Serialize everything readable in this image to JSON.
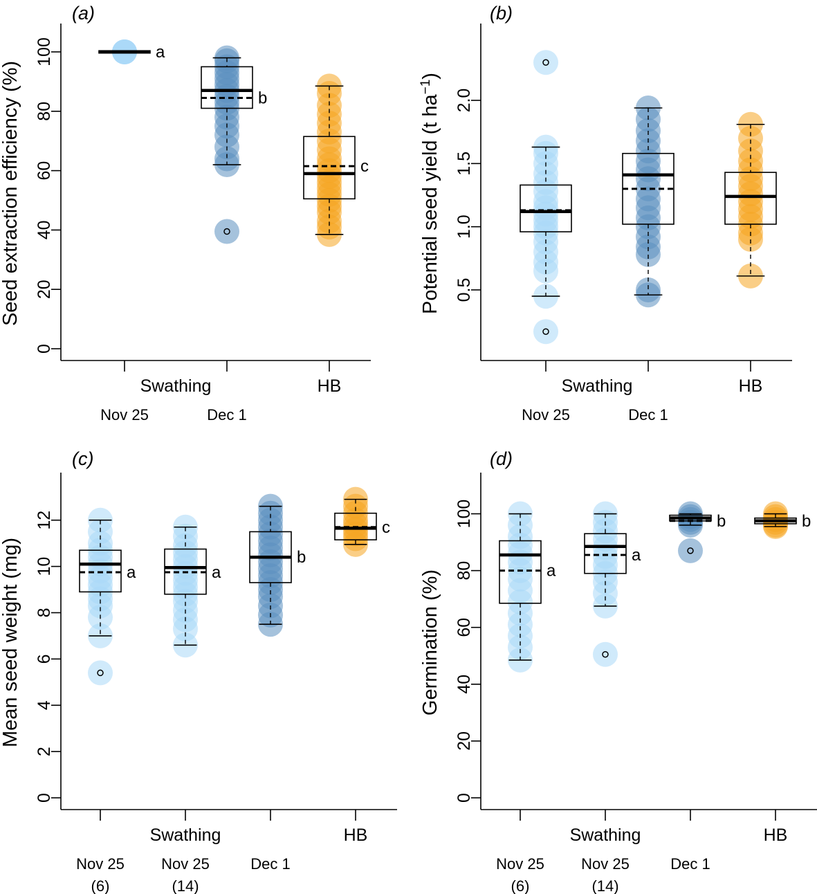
{
  "colors": {
    "light_blue": "#a9d8f8",
    "dark_blue": "#5b8fbf",
    "orange": "#f5a623",
    "axis": "#000000"
  },
  "chart_data": [
    {
      "id": "a",
      "type": "boxplot",
      "panel_label": "(a)",
      "ylabel": "Seed extraction efficiency (%)",
      "ylim": [
        0,
        100
      ],
      "yticks": [
        0,
        20,
        40,
        60,
        80,
        100
      ],
      "ytick_labels": [
        "0",
        "20",
        "40",
        "60",
        "80",
        "100"
      ],
      "group_labels": [
        "Swathing",
        "HB"
      ],
      "categories": [
        {
          "label": "Nov 25",
          "sublabel": "",
          "group": 0,
          "color": "light_blue",
          "letter": "a",
          "q1": 99.6,
          "median": 100,
          "q3": 100.4,
          "mean": null,
          "wlo": 100,
          "whi": 100,
          "outliers": [],
          "points": [
            100,
            100,
            100,
            100,
            100
          ]
        },
        {
          "label": "Dec 1",
          "sublabel": "",
          "group": 0,
          "color": "dark_blue",
          "letter": "b",
          "q1": 81,
          "median": 87,
          "q3": 95,
          "mean": 84.5,
          "wlo": 62,
          "whi": 98,
          "outliers": [
            39.5
          ],
          "points": [
            98,
            97,
            95,
            93,
            91,
            89,
            87,
            85,
            83,
            81,
            78,
            75,
            72,
            68,
            64,
            62,
            39.5
          ]
        },
        {
          "label": "",
          "sublabel": "",
          "group": 1,
          "color": "orange",
          "letter": "c",
          "q1": 50.5,
          "median": 59,
          "q3": 71.5,
          "mean": 61.5,
          "wlo": 38.5,
          "whi": 88.5,
          "outliers": [],
          "points": [
            88.5,
            86,
            82,
            79,
            76,
            73,
            70,
            67,
            64,
            62,
            60,
            58,
            56,
            54,
            52,
            50,
            48,
            46,
            43,
            41,
            38.5
          ]
        }
      ]
    },
    {
      "id": "b",
      "type": "boxplot",
      "panel_label": "(b)",
      "ylabel": "Potential seed yield (t ha",
      "ylabel_superscript": "−1",
      "ylabel_tail": ")",
      "ylim": [
        0.1,
        2.4
      ],
      "yticks": [
        0.5,
        1.0,
        1.5,
        2.0
      ],
      "ytick_labels": [
        "0.5",
        "1.0",
        "1.5",
        "2.0"
      ],
      "group_labels": [
        "Swathing",
        "HB"
      ],
      "categories": [
        {
          "label": "Nov 25",
          "sublabel": "",
          "group": 0,
          "color": "light_blue",
          "letter": "",
          "q1": 0.96,
          "median": 1.12,
          "q3": 1.33,
          "mean": 1.13,
          "wlo": 0.45,
          "whi": 1.63,
          "outliers": [
            2.3,
            0.17
          ],
          "points": [
            1.63,
            1.58,
            1.5,
            1.42,
            1.35,
            1.28,
            1.2,
            1.15,
            1.1,
            1.05,
            1.0,
            0.95,
            0.88,
            0.8,
            0.72,
            0.65,
            0.45,
            2.3,
            0.17
          ]
        },
        {
          "label": "Dec 1",
          "sublabel": "",
          "group": 0,
          "color": "dark_blue",
          "letter": "",
          "q1": 1.02,
          "median": 1.41,
          "q3": 1.58,
          "mean": 1.3,
          "wlo": 0.46,
          "whi": 1.94,
          "outliers": [],
          "points": [
            1.94,
            1.85,
            1.76,
            1.68,
            1.6,
            1.52,
            1.45,
            1.38,
            1.3,
            1.22,
            1.15,
            1.07,
            1.0,
            0.92,
            0.84,
            0.78,
            0.5,
            0.46
          ]
        },
        {
          "label": "",
          "sublabel": "",
          "group": 1,
          "color": "orange",
          "letter": "",
          "q1": 1.02,
          "median": 1.24,
          "q3": 1.43,
          "mean": null,
          "wlo": 0.61,
          "whi": 1.81,
          "outliers": [],
          "points": [
            1.81,
            1.7,
            1.6,
            1.52,
            1.45,
            1.38,
            1.32,
            1.26,
            1.2,
            1.14,
            1.08,
            1.02,
            0.95,
            0.9,
            0.61
          ]
        }
      ]
    },
    {
      "id": "c",
      "type": "boxplot",
      "panel_label": "(c)",
      "ylabel": "Mean seed weight (mg)",
      "ylim": [
        0,
        12.5
      ],
      "yticks": [
        0,
        2,
        4,
        6,
        8,
        10,
        12
      ],
      "ytick_labels": [
        "0",
        "2",
        "4",
        "6",
        "8",
        "10",
        "12"
      ],
      "group_labels": [
        "Swathing",
        "HB"
      ],
      "categories": [
        {
          "label": "Nov 25",
          "sublabel": "(6)",
          "group": 0,
          "color": "light_blue",
          "letter": "a",
          "q1": 8.9,
          "median": 10.1,
          "q3": 10.7,
          "mean": 9.75,
          "wlo": 7.0,
          "whi": 12.0,
          "outliers": [
            5.4
          ],
          "points": [
            12.0,
            11.5,
            11.0,
            10.7,
            10.4,
            10.1,
            9.8,
            9.5,
            9.2,
            8.9,
            8.6,
            8.3,
            7.8,
            7.0,
            5.4
          ]
        },
        {
          "label": "Nov 25",
          "sublabel": "(14)",
          "group": 0,
          "color": "light_blue",
          "letter": "a",
          "q1": 8.8,
          "median": 9.95,
          "q3": 10.75,
          "mean": 9.75,
          "wlo": 6.6,
          "whi": 11.7,
          "outliers": [],
          "points": [
            11.7,
            11.3,
            10.9,
            10.6,
            10.3,
            10.0,
            9.7,
            9.4,
            9.1,
            8.8,
            8.5,
            8.1,
            7.7,
            7.3,
            6.6
          ]
        },
        {
          "label": "Dec 1",
          "sublabel": "",
          "group": 0,
          "color": "dark_blue",
          "letter": "b",
          "q1": 9.3,
          "median": 10.4,
          "q3": 11.5,
          "mean": null,
          "wlo": 7.5,
          "whi": 12.6,
          "outliers": [],
          "points": [
            12.6,
            12.3,
            12.0,
            11.7,
            11.4,
            11.1,
            10.8,
            10.5,
            10.2,
            9.9,
            9.6,
            9.3,
            9.0,
            8.7,
            8.3,
            7.9,
            7.5
          ]
        },
        {
          "label": "",
          "sublabel": "",
          "group": 1,
          "color": "orange",
          "letter": "c",
          "q1": 11.15,
          "median": 11.65,
          "q3": 12.3,
          "mean": 11.7,
          "wlo": 10.95,
          "whi": 12.9,
          "outliers": [],
          "points": [
            12.9,
            12.6,
            12.3,
            12.0,
            11.8,
            11.6,
            11.4,
            11.2,
            10.95
          ]
        }
      ]
    },
    {
      "id": "d",
      "type": "boxplot",
      "panel_label": "(d)",
      "ylabel": "Germination (%)",
      "ylim": [
        0,
        105
      ],
      "yticks": [
        0,
        20,
        40,
        60,
        80,
        100
      ],
      "ytick_labels": [
        "0",
        "20",
        "40",
        "60",
        "80",
        "100"
      ],
      "group_labels": [
        "Swathing",
        "HB"
      ],
      "categories": [
        {
          "label": "Nov 25",
          "sublabel": "(6)",
          "group": 0,
          "color": "light_blue",
          "letter": "a",
          "q1": 68.5,
          "median": 85.5,
          "q3": 90.5,
          "mean": 80,
          "wlo": 48.5,
          "whi": 100,
          "outliers": [],
          "points": [
            100,
            96,
            92,
            89,
            86,
            83,
            80,
            77,
            73,
            69,
            65,
            61,
            57,
            53,
            48.5
          ]
        },
        {
          "label": "Nov 25",
          "sublabel": "(14)",
          "group": 0,
          "color": "light_blue",
          "letter": "a",
          "q1": 79,
          "median": 88.5,
          "q3": 93,
          "mean": 85.5,
          "wlo": 67.5,
          "whi": 100,
          "outliers": [
            50.5
          ],
          "points": [
            100,
            97,
            94,
            91,
            88,
            85,
            82,
            79,
            76,
            72,
            67.5,
            50.5
          ]
        },
        {
          "label": "Dec 1",
          "sublabel": "",
          "group": 0,
          "color": "dark_blue",
          "letter": "b",
          "q1": 97.5,
          "median": 98.5,
          "q3": 99.5,
          "mean": 97.5,
          "wlo": 96,
          "whi": 100,
          "outliers": [
            87
          ],
          "points": [
            100,
            99,
            98,
            97,
            96,
            87
          ]
        },
        {
          "label": "",
          "sublabel": "",
          "group": 1,
          "color": "orange",
          "letter": "b",
          "q1": 96.5,
          "median": 97.5,
          "q3": 98.5,
          "mean": null,
          "wlo": 95.5,
          "whi": 100,
          "outliers": [],
          "points": [
            100,
            99,
            98,
            97,
            96,
            95.5
          ]
        }
      ]
    }
  ]
}
